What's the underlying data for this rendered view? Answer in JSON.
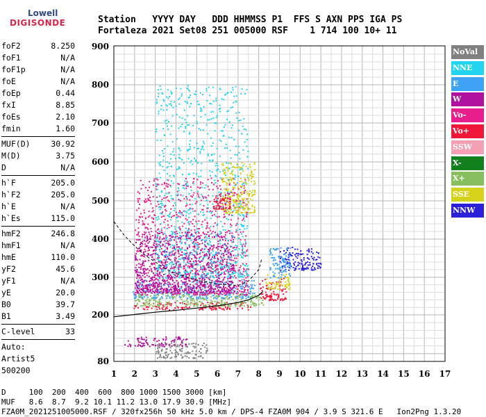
{
  "logo": {
    "top": "Lowell",
    "bottom": "DIGISONDE"
  },
  "header": {
    "line1": "Station   YYYY DAY   DDD HHMMSS P1  FFS S AXN PPS IGA PS",
    "line2": "Fortaleza 2021 Set08 251 005000 RSF    1 714 100 10+ 11"
  },
  "params": [
    {
      "type": "row",
      "label": "foF2",
      "value": "8.250"
    },
    {
      "type": "row",
      "label": "foF1",
      "value": "N/A"
    },
    {
      "type": "row",
      "label": "foF1p",
      "value": "N/A"
    },
    {
      "type": "row",
      "label": "foE",
      "value": "N/A"
    },
    {
      "type": "row",
      "label": "foEp",
      "value": "0.44"
    },
    {
      "type": "row",
      "label": "fxI",
      "value": "8.85"
    },
    {
      "type": "row",
      "label": "foEs",
      "value": "2.10"
    },
    {
      "type": "row",
      "label": "fmin",
      "value": "1.60"
    },
    {
      "type": "sep"
    },
    {
      "type": "row",
      "label": "MUF(D)",
      "value": "30.92"
    },
    {
      "type": "row",
      "label": "M(D)",
      "value": "3.75"
    },
    {
      "type": "row",
      "label": "D",
      "value": "N/A"
    },
    {
      "type": "sep"
    },
    {
      "type": "row",
      "label": "h`F",
      "value": "205.0"
    },
    {
      "type": "row",
      "label": "h`F2",
      "value": "205.0"
    },
    {
      "type": "row",
      "label": "h`E",
      "value": "N/A"
    },
    {
      "type": "row",
      "label": "h`Es",
      "value": "115.0"
    },
    {
      "type": "sep"
    },
    {
      "type": "row",
      "label": "hmF2",
      "value": "246.8"
    },
    {
      "type": "row",
      "label": "hmF1",
      "value": "N/A"
    },
    {
      "type": "row",
      "label": "hmE",
      "value": "110.0"
    },
    {
      "type": "row",
      "label": "yF2",
      "value": "45.6"
    },
    {
      "type": "row",
      "label": "yF1",
      "value": "N/A"
    },
    {
      "type": "row",
      "label": "yE",
      "value": "20.0"
    },
    {
      "type": "row",
      "label": "B0",
      "value": "39.7"
    },
    {
      "type": "row",
      "label": "B1",
      "value": "3.49"
    },
    {
      "type": "sep"
    },
    {
      "type": "row",
      "label": "C-level",
      "value": "33"
    },
    {
      "type": "sep"
    },
    {
      "type": "text",
      "text": "Auto:"
    },
    {
      "type": "text",
      "text": "Artist5"
    },
    {
      "type": "text",
      "text": "500200"
    }
  ],
  "legend": [
    {
      "label": "NoVal",
      "color": "#808080"
    },
    {
      "label": "NNE",
      "color": "#22d4f0"
    },
    {
      "label": "E",
      "color": "#3ea3f4"
    },
    {
      "label": "W",
      "color": "#b0109e"
    },
    {
      "label": "Vo-",
      "color": "#e81e8c"
    },
    {
      "label": "Vo+",
      "color": "#f0163a"
    },
    {
      "label": "SSW",
      "color": "#f4a0b4"
    },
    {
      "label": "X-",
      "color": "#12801c"
    },
    {
      "label": "X+",
      "color": "#88be5e"
    },
    {
      "label": "SSE",
      "color": "#d6d21c"
    },
    {
      "label": "NNW",
      "color": "#2a20d8"
    }
  ],
  "chart_data": {
    "type": "scatter",
    "xlabel": "",
    "ylabel": "",
    "xlim": [
      1,
      17
    ],
    "ylim": [
      80,
      900
    ],
    "x_ticks": [
      "1",
      "2",
      "3",
      "4",
      "5",
      "6",
      "7",
      "8",
      "9",
      "10",
      "11",
      "12",
      "13",
      "14",
      "15",
      "16",
      "17"
    ],
    "y_ticks": [
      "80",
      "200",
      "300",
      "400",
      "500",
      "600",
      "700",
      "800",
      "900"
    ],
    "grid": true,
    "y_anchor_values": [
      80,
      200,
      300,
      400,
      500,
      600,
      700,
      800,
      900
    ],
    "profile_curve": [
      [
        1.0,
        195
      ],
      [
        2.0,
        201
      ],
      [
        3.0,
        207
      ],
      [
        4.0,
        212
      ],
      [
        5.0,
        218
      ],
      [
        6.0,
        224
      ],
      [
        7.0,
        233
      ],
      [
        7.5,
        240
      ],
      [
        8.0,
        252
      ],
      [
        8.2,
        262
      ]
    ],
    "dashed_curve": [
      [
        1.0,
        446
      ],
      [
        1.5,
        410
      ],
      [
        2.0,
        382
      ],
      [
        2.5,
        358
      ],
      [
        3.0,
        340
      ],
      [
        3.5,
        322
      ],
      [
        4.0,
        310
      ],
      [
        5.0,
        292
      ],
      [
        6.0,
        282
      ],
      [
        7.0,
        278
      ],
      [
        7.5,
        290
      ],
      [
        8.0,
        320
      ],
      [
        8.15,
        350
      ]
    ],
    "echo_regions": [
      {
        "series": "Vo+",
        "x": [
          1.9,
          7.6
        ],
        "y": [
          215,
          235
        ]
      },
      {
        "series": "E",
        "x": [
          1.9,
          7.8
        ],
        "y": [
          245,
          295
        ]
      },
      {
        "series": "X+",
        "x": [
          2.0,
          8.2
        ],
        "y": [
          225,
          260
        ]
      },
      {
        "series": "Vo-",
        "x": [
          2.0,
          7.5
        ],
        "y": [
          255,
          560
        ]
      },
      {
        "series": "W",
        "x": [
          2.0,
          6.8
        ],
        "y": [
          260,
          420
        ]
      },
      {
        "series": "NNE",
        "x": [
          3.0,
          7.5
        ],
        "y": [
          300,
          800
        ]
      },
      {
        "series": "Vo+",
        "x": [
          8.0,
          9.3
        ],
        "y": [
          240,
          300
        ]
      },
      {
        "series": "SSE",
        "x": [
          8.3,
          9.5
        ],
        "y": [
          270,
          310
        ]
      },
      {
        "series": "NNW",
        "x": [
          9.0,
          11.0
        ],
        "y": [
          320,
          380
        ]
      },
      {
        "series": "E",
        "x": [
          8.5,
          9.5
        ],
        "y": [
          300,
          380
        ]
      },
      {
        "series": "W",
        "x": [
          1.5,
          4.5
        ],
        "y": [
          120,
          145
        ]
      },
      {
        "series": "NoVal",
        "x": [
          3.0,
          5.5
        ],
        "y": [
          90,
          130
        ]
      },
      {
        "series": "SSE",
        "x": [
          6.2,
          7.8
        ],
        "y": [
          470,
          600
        ]
      },
      {
        "series": "Vo+",
        "x": [
          5.8,
          6.6
        ],
        "y": [
          480,
          520
        ]
      }
    ]
  },
  "footer": {
    "line1": "D     100  200  400  600  800 1000 1500 3000 [km]",
    "line2": "MUF   8.6  8.7  9.2 10.1 11.2 13.0 17.9 30.9 [MHz]",
    "line3": "FZA0M_2021251005000.RSF / 320fx256h 50 kHz 5.0 km / DPS-4 FZA0M 904 / 3.9 S 321.6 E   Ion2Png 1.3.20"
  }
}
